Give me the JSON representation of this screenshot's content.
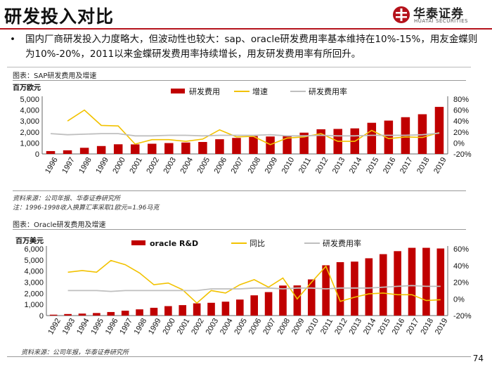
{
  "page": {
    "title": "研发投入对比",
    "logo_cn": "华泰证券",
    "logo_en": "HUATAI SECURITIES",
    "page_number": "74",
    "bullet": "国内厂商研发投入力度略大，但波动性也较大：sap、oracle研发费用率基本维持在10%-15%，用友金蝶则为10%-20%，2011以来金蝶研发费用率持续增长，用友研发费用率有所回升。"
  },
  "colors": {
    "bar": "#c00000",
    "growth": "#f2c200",
    "ratio": "#bfbfbf",
    "accent": "#b5121b"
  },
  "charts": {
    "sap": {
      "caption": "图表：SAP研发费用及增速",
      "unit": "百万欧元",
      "source": "资料来源：公司年报、华泰证券研究所",
      "note": "注：1996-1998收入换算汇率采取1欧元=1.96马克"
    },
    "oracle": {
      "caption": "图表：Oracle研发费用及增速",
      "unit": "百万美元",
      "source": "资料来源：公司年报，华泰证券研究所"
    }
  },
  "chart_data": [
    {
      "type": "bar",
      "title": "SAP研发费用及增速",
      "categories": [
        "1996",
        "1997",
        "1998",
        "1999",
        "2000",
        "2001",
        "2002",
        "2003",
        "2004",
        "2005",
        "2006",
        "2007",
        "2008",
        "2009",
        "2010",
        "2011",
        "2012",
        "2013",
        "2014",
        "2015",
        "2016",
        "2017",
        "2018",
        "2019"
      ],
      "ylim": [
        0,
        5000
      ],
      "yticks": [
        "0",
        "1,000",
        "2,000",
        "3,000",
        "4,000",
        "5,000"
      ],
      "ylim_right": [
        -20,
        80
      ],
      "yticks_right": [
        "-20%",
        "0%",
        "20%",
        "40%",
        "60%",
        "80%"
      ],
      "series": [
        {
          "name": "研发费用",
          "kind": "bar",
          "axis": "left",
          "values": [
            260,
            330,
            560,
            720,
            880,
            870,
            930,
            990,
            1040,
            1090,
            1340,
            1460,
            1630,
            1590,
            1700,
            1940,
            2250,
            2280,
            2330,
            2840,
            3040,
            3350,
            3620,
            4290
          ]
        },
        {
          "name": "增速",
          "kind": "line",
          "axis": "right",
          "values": [
            null,
            40,
            60,
            32,
            31,
            -2,
            6,
            6,
            3,
            7,
            24,
            11,
            12,
            -3,
            9,
            11,
            17,
            3,
            3,
            23,
            8,
            11,
            10,
            19
          ]
        },
        {
          "name": "研发费用率",
          "kind": "line",
          "axis": "right",
          "values": [
            17,
            15,
            16,
            17,
            17,
            13,
            13,
            14,
            14,
            13,
            14,
            14,
            14,
            15,
            13,
            13,
            14,
            13,
            13,
            14,
            14,
            14,
            15,
            18
          ]
        }
      ],
      "legend": [
        "研发费用",
        "增速",
        "研发费用率"
      ]
    },
    {
      "type": "bar",
      "title": "Oracle研发费用及增速",
      "categories": [
        "1992",
        "1993",
        "1994",
        "1995",
        "1996",
        "1997",
        "1998",
        "1999",
        "2000",
        "2001",
        "2002",
        "2003",
        "2004",
        "2005",
        "2006",
        "2007",
        "2008",
        "2009",
        "2010",
        "2011",
        "2012",
        "2013",
        "2014",
        "2015",
        "2016",
        "2017",
        "2018",
        "2019"
      ],
      "ylim": [
        0,
        6000
      ],
      "yticks": [
        "0",
        "1,000",
        "2,000",
        "3,000",
        "4,000",
        "5,000",
        "6,000"
      ],
      "ylim_right": [
        -20,
        60
      ],
      "yticks_right": [
        "-20%",
        "0%",
        "20%",
        "40%",
        "60%"
      ],
      "series": [
        {
          "name": "oracle R&D",
          "kind": "bar",
          "axis": "left",
          "values": [
            80,
            140,
            180,
            230,
            320,
            440,
            560,
            700,
            850,
            940,
            1100,
            1150,
            1250,
            1440,
            1820,
            2110,
            2700,
            2710,
            3250,
            4520,
            4800,
            4850,
            5150,
            5520,
            5790,
            6090,
            6090,
            6030
          ]
        },
        {
          "name": "同比",
          "kind": "line",
          "axis": "right",
          "values": [
            null,
            32,
            34,
            32,
            46,
            41,
            31,
            17,
            19,
            11,
            -5,
            10,
            7,
            17,
            23,
            14,
            25,
            0,
            20,
            39,
            -3,
            2,
            6,
            7,
            5,
            5,
            -2,
            -1
          ]
        },
        {
          "name": "研发费用率",
          "kind": "line",
          "axis": "right",
          "values": [
            null,
            10,
            10,
            10,
            9,
            10,
            10,
            10,
            10,
            10,
            10,
            12,
            12,
            12,
            13,
            13,
            12,
            13,
            13,
            12,
            13,
            13,
            13,
            14,
            15,
            16,
            15,
            15
          ]
        }
      ],
      "legend": [
        "oracle R&D",
        "同比",
        "研发费用率"
      ]
    }
  ]
}
